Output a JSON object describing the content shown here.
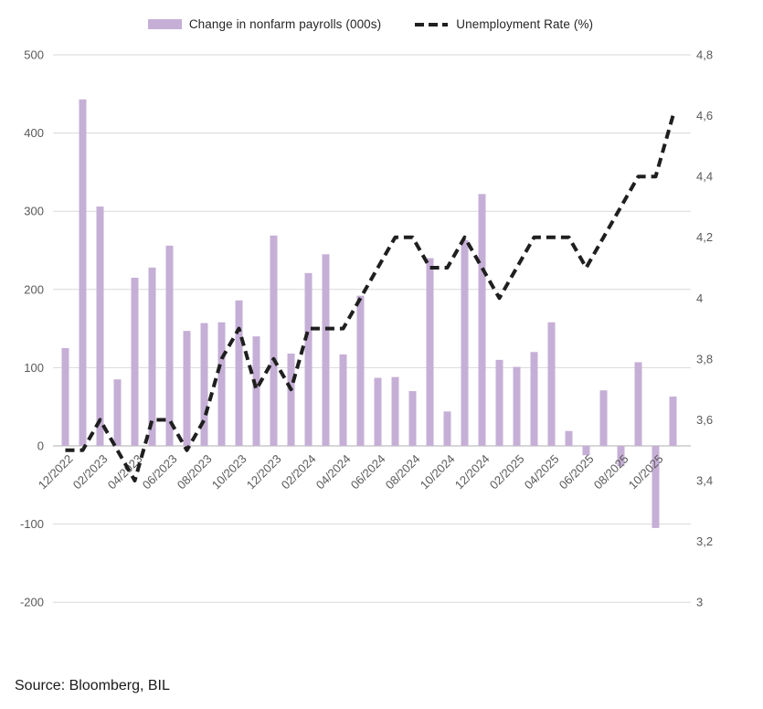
{
  "legend": {
    "bars_label": "Change in nonfarm payrolls (000s)",
    "line_label": "Unemployment Rate (%)"
  },
  "source_text": "Source: Bloomberg, BIL",
  "colors": {
    "bar": "#c6afd6",
    "line": "#1f1f1f",
    "gridline": "#d9d9d9",
    "zero_line": "#bdbdbd",
    "axis_text": "#595959",
    "background": "#ffffff"
  },
  "chart_data": {
    "type": "bar",
    "subtype": "combo-bar-line-dual-axis",
    "title": "",
    "grid": true,
    "legend_position": "top",
    "categories": [
      "12/2022",
      "01/2023",
      "02/2023",
      "03/2023",
      "04/2023",
      "05/2023",
      "06/2023",
      "07/2023",
      "08/2023",
      "09/2023",
      "10/2023",
      "11/2023",
      "12/2023",
      "01/2024",
      "02/2024",
      "03/2024",
      "04/2024",
      "05/2024",
      "06/2024",
      "07/2024",
      "08/2024",
      "09/2024",
      "10/2024",
      "11/2024",
      "12/2024",
      "01/2025",
      "02/2025",
      "03/2025",
      "04/2025",
      "05/2025",
      "06/2025",
      "07/2025",
      "08/2025",
      "09/2025",
      "10/2025",
      "11/2025"
    ],
    "x_tick_labels": [
      "12/2022",
      "02/2023",
      "04/2023",
      "06/2023",
      "08/2023",
      "10/2023",
      "12/2023",
      "02/2024",
      "04/2024",
      "06/2024",
      "08/2024",
      "10/2024",
      "12/2024",
      "02/2025",
      "04/2025",
      "06/2025",
      "08/2025",
      "10/2025"
    ],
    "x_tick_every": 2,
    "series": [
      {
        "name": "Change in nonfarm payrolls (000s)",
        "type": "bar",
        "axis": "left",
        "values": [
          125,
          443,
          306,
          85,
          215,
          228,
          256,
          147,
          157,
          158,
          186,
          140,
          269,
          118,
          221,
          245,
          117,
          192,
          87,
          88,
          70,
          240,
          44,
          263,
          322,
          110,
          101,
          120,
          158,
          19,
          -12,
          71,
          -26,
          107,
          -105,
          63
        ]
      },
      {
        "name": "Unemployment Rate (%)",
        "type": "line",
        "style": "dashed",
        "axis": "right",
        "values": [
          3.5,
          3.5,
          3.6,
          3.5,
          3.4,
          3.6,
          3.6,
          3.5,
          3.6,
          3.8,
          3.9,
          3.7,
          3.8,
          3.7,
          3.9,
          3.9,
          3.9,
          4.0,
          4.1,
          4.2,
          4.2,
          4.1,
          4.1,
          4.2,
          4.1,
          4.0,
          4.1,
          4.2,
          4.2,
          4.2,
          4.1,
          4.2,
          4.3,
          4.4,
          4.4,
          4.6
        ]
      }
    ],
    "left_axis": {
      "range": [
        -200,
        500
      ],
      "tick_labels": [
        "500",
        "400",
        "300",
        "200",
        "100",
        "0",
        "-100",
        "-200"
      ],
      "tick_values": [
        500,
        400,
        300,
        200,
        100,
        0,
        -100,
        -200
      ]
    },
    "right_axis": {
      "range": [
        3,
        4.8
      ],
      "tick_labels": [
        "4,8",
        "4,6",
        "4,4",
        "4,2",
        "4",
        "3,8",
        "3,6",
        "3,4",
        "3,2",
        "3"
      ],
      "tick_values": [
        4.8,
        4.6,
        4.4,
        4.2,
        4.0,
        3.8,
        3.6,
        3.4,
        3.2,
        3.0
      ],
      "decimal_separator": ","
    }
  }
}
